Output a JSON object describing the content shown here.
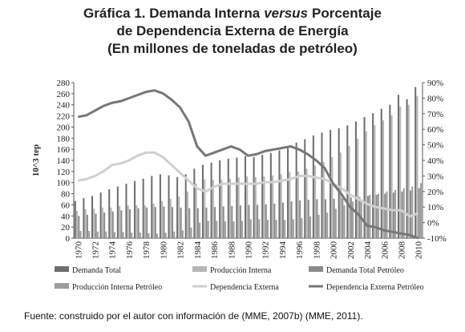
{
  "chart_data": {
    "type": "bar",
    "title_lines": [
      [
        "Gráfica 1. Demanda Interna",
        "versus",
        "Porcentaje"
      ],
      [
        "de Dependencia Externa de Energía"
      ],
      [
        "(En millones de toneladas de petróleo)"
      ]
    ],
    "y_label": "10^3 tep",
    "source": "Fuente: construido por el autor con información de (MME, 2007b) (MME, 2011).",
    "categories": [
      "1970",
      null,
      "1972",
      null,
      "1974",
      null,
      "1976",
      null,
      "1978",
      null,
      "1980",
      null,
      "1982",
      null,
      "1984",
      null,
      "1986",
      null,
      "1988",
      null,
      "1990",
      null,
      "1992",
      null,
      "1994",
      null,
      "1996",
      null,
      "1998",
      null,
      "2000",
      null,
      "2002",
      null,
      "2004",
      null,
      "2006",
      null,
      "2008",
      null,
      "2010"
    ],
    "ylim": [
      0,
      280
    ],
    "yticks": [
      0,
      20,
      40,
      60,
      80,
      100,
      120,
      140,
      160,
      180,
      200,
      220,
      240,
      260,
      280
    ],
    "y2lim": [
      -10,
      90
    ],
    "y2ticks": [
      {
        "value": -10,
        "label": "-10%"
      },
      {
        "value": 0,
        "label": "0%"
      },
      {
        "value": 10,
        "label": "10%"
      },
      {
        "value": 20,
        "label": "20%"
      },
      {
        "value": 30,
        "label": "30%"
      },
      {
        "value": 40,
        "label": "40%"
      },
      {
        "value": 50,
        "label": "50%"
      },
      {
        "value": 60,
        "label": "60%"
      },
      {
        "value": 70,
        "label": "70%"
      },
      {
        "value": 80,
        "label": "80%"
      },
      {
        "value": 90,
        "label": "90%"
      }
    ],
    "series": [
      {
        "name": "Demanda Total",
        "type": "bar",
        "color": "#6e6e6e",
        "values": [
          67,
          72,
          76,
          82,
          88,
          93,
          98,
          103,
          107,
          112,
          115,
          113,
          110,
          115,
          125,
          132,
          136,
          140,
          143,
          145,
          148,
          146,
          150,
          153,
          158,
          165,
          172,
          178,
          185,
          190,
          195,
          198,
          203,
          210,
          218,
          225,
          233,
          240,
          258,
          250,
          272
        ]
      },
      {
        "name": "Producción Interna",
        "type": "bar",
        "color": "#b5b5b5",
        "values": [
          49,
          52,
          53,
          55,
          55,
          58,
          59,
          59,
          59,
          62,
          67,
          71,
          75,
          84,
          98,
          106,
          105,
          105,
          107,
          109,
          111,
          110,
          111,
          113,
          115,
          119,
          120,
          125,
          131,
          137,
          146,
          154,
          166,
          179,
          192,
          203,
          212,
          221,
          237,
          240,
          256
        ]
      },
      {
        "name": "Demanda Total Petróleo",
        "type": "bar",
        "color": "#8a8a8a",
        "values": [
          40,
          42,
          44,
          46,
          48,
          50,
          52,
          54,
          55,
          56,
          57,
          56,
          55,
          54,
          54,
          55,
          56,
          57,
          58,
          59,
          60,
          60,
          61,
          62,
          64,
          66,
          68,
          69,
          70,
          70,
          71,
          72,
          73,
          74,
          76,
          78,
          80,
          82,
          84,
          86,
          90
        ]
      },
      {
        "name": "Producción Interna Petróleo",
        "type": "bar",
        "color": "#9c9c9c",
        "values": [
          13,
          13,
          12,
          12,
          11,
          11,
          10,
          10,
          9,
          8,
          10,
          12,
          14,
          19,
          28,
          31,
          31,
          30,
          30,
          31,
          34,
          34,
          33,
          33,
          33,
          34,
          36,
          39,
          42,
          46,
          53,
          59,
          66,
          70,
          78,
          80,
          84,
          87,
          90,
          93,
          99
        ]
      },
      {
        "name": "Dependencia Externa",
        "type": "line",
        "axis": "y2",
        "color": "#d0d0d0",
        "values": [
          27,
          28,
          30,
          33,
          37,
          38,
          40,
          43,
          45,
          45,
          42,
          37,
          32,
          27,
          22,
          20,
          23,
          25,
          25,
          25,
          25,
          25,
          26,
          26,
          27,
          28,
          30,
          30,
          29,
          28,
          25,
          22,
          18,
          15,
          12,
          10,
          9,
          8,
          8,
          4,
          6
        ]
      },
      {
        "name": "Dependencia Externa Petróleo",
        "type": "line",
        "axis": "y2",
        "color": "#777777",
        "values": [
          68,
          69,
          72,
          75,
          77,
          78,
          80,
          82,
          84,
          85,
          83,
          79,
          74,
          65,
          49,
          43,
          45,
          47,
          49,
          47,
          43,
          44,
          46,
          47,
          48,
          49,
          47,
          44,
          40,
          35,
          25,
          18,
          10,
          5,
          -2,
          -3,
          -5,
          -6,
          -7,
          -8,
          -10
        ]
      }
    ]
  }
}
